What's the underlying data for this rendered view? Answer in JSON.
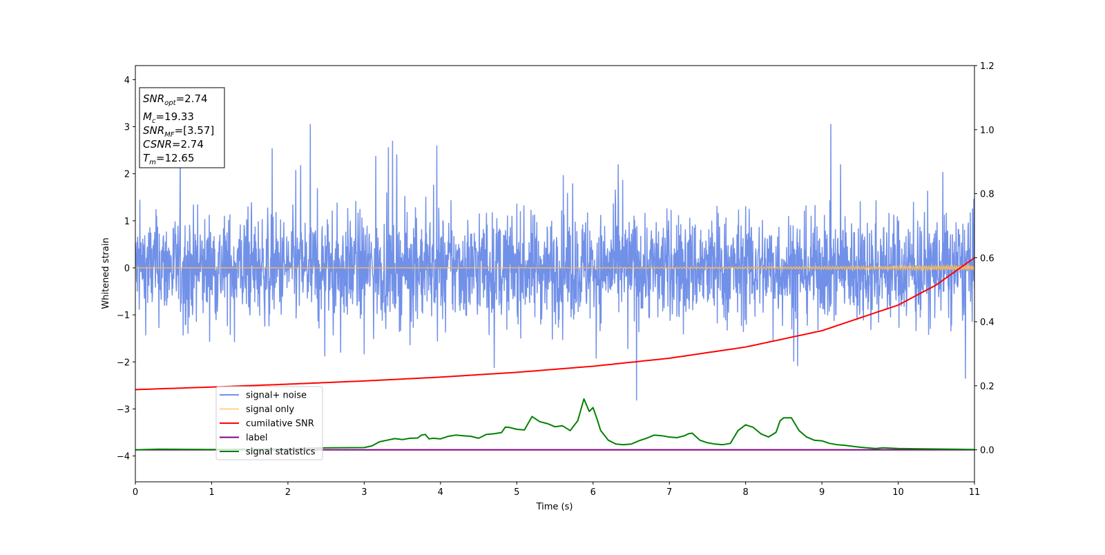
{
  "chart_data": {
    "type": "line",
    "xlabel": "Time (s)",
    "ylabel": "Whitened strain",
    "xlim": [
      0,
      11
    ],
    "ylim_left": [
      -4.55,
      4.3
    ],
    "ylim_right": [
      -0.1,
      1.2
    ],
    "x_ticks": [
      0,
      1,
      2,
      3,
      4,
      5,
      6,
      7,
      8,
      9,
      10,
      11
    ],
    "y_ticks_left": [
      -4,
      -3,
      -2,
      -1,
      0,
      1,
      2,
      3,
      4
    ],
    "y_ticks_right": [
      0.0,
      0.2,
      0.4,
      0.6,
      0.8,
      1.0,
      1.2
    ],
    "y_tick_labels_left": [
      "−4",
      "−3",
      "−2",
      "−1",
      "0",
      "1",
      "2",
      "3",
      "4"
    ],
    "y_tick_labels_right": [
      "0.0",
      "0.2",
      "0.4",
      "0.6",
      "0.8",
      "1.0",
      "1.2"
    ],
    "info_box": {
      "snr_opt": {
        "base": "SNR",
        "sub": "opt",
        "value": "=2.74"
      },
      "mc": {
        "base": "M",
        "sub": "c",
        "value": "=19.33"
      },
      "snr_mf": {
        "base": "SNR",
        "sub": "MF",
        "value": "=[3.57]"
      },
      "csnr": {
        "base": "CSNR",
        "value": "=2.74"
      },
      "tm": {
        "base": "T",
        "sub": "m",
        "value": "=12.65"
      }
    },
    "legend": {
      "placement": "lower-left",
      "entries": [
        {
          "label": "signal+ noise",
          "color": "#7190e8"
        },
        {
          "label": "signal only",
          "color": "#ffd28a"
        },
        {
          "label": "cumilative SNR",
          "color": "#ff0000"
        },
        {
          "label": "label",
          "color": "#800080"
        },
        {
          "label": "signal statistics",
          "color": "#008000"
        }
      ]
    },
    "series": [
      {
        "name": "signal+ noise",
        "axis": "left",
        "color": "#7190e8",
        "description": "noise band approx ±1.7 with spikes up to ~3.1"
      },
      {
        "name": "signal only",
        "axis": "left",
        "color": "#f0b860",
        "amplitude_end": 0.05
      },
      {
        "name": "cumilative SNR",
        "axis": "right",
        "color": "#ff0000",
        "x": [
          0,
          1,
          2,
          3,
          4,
          5,
          6,
          7,
          8,
          9,
          10,
          10.5,
          11
        ],
        "y": [
          0.188,
          0.196,
          0.205,
          0.215,
          0.227,
          0.242,
          0.261,
          0.286,
          0.321,
          0.372,
          0.452,
          0.515,
          0.6
        ]
      },
      {
        "name": "label",
        "axis": "right",
        "color": "#800080",
        "x": [
          0,
          11
        ],
        "y": [
          0,
          0
        ]
      },
      {
        "name": "signal statistics",
        "axis": "right",
        "color": "#008000",
        "x": [
          0,
          0.3,
          1,
          2,
          2.5,
          3,
          3.1,
          3.2,
          3.3,
          3.4,
          3.5,
          3.6,
          3.7,
          3.75,
          3.8,
          3.85,
          3.9,
          4.0,
          4.1,
          4.2,
          4.3,
          4.4,
          4.5,
          4.6,
          4.7,
          4.8,
          4.85,
          4.9,
          5.0,
          5.1,
          5.2,
          5.3,
          5.4,
          5.5,
          5.6,
          5.7,
          5.8,
          5.88,
          5.95,
          6.0,
          6.05,
          6.1,
          6.2,
          6.3,
          6.4,
          6.5,
          6.6,
          6.7,
          6.8,
          6.9,
          7.0,
          7.1,
          7.2,
          7.25,
          7.3,
          7.4,
          7.5,
          7.6,
          7.7,
          7.8,
          7.9,
          8.0,
          8.1,
          8.2,
          8.3,
          8.4,
          8.45,
          8.5,
          8.55,
          8.6,
          8.7,
          8.8,
          8.9,
          9.0,
          9.1,
          9.2,
          9.3,
          9.5,
          9.7,
          9.8,
          10.0,
          10.3,
          10.7,
          11
        ],
        "y": [
          0.0,
          0.002,
          0.001,
          0.003,
          0.006,
          0.007,
          0.012,
          0.025,
          0.03,
          0.035,
          0.032,
          0.036,
          0.037,
          0.046,
          0.048,
          0.034,
          0.036,
          0.034,
          0.042,
          0.046,
          0.044,
          0.042,
          0.036,
          0.048,
          0.05,
          0.054,
          0.071,
          0.07,
          0.064,
          0.062,
          0.104,
          0.088,
          0.082,
          0.072,
          0.075,
          0.06,
          0.091,
          0.159,
          0.12,
          0.132,
          0.098,
          0.06,
          0.03,
          0.018,
          0.016,
          0.018,
          0.028,
          0.036,
          0.046,
          0.044,
          0.04,
          0.038,
          0.044,
          0.05,
          0.052,
          0.03,
          0.022,
          0.018,
          0.016,
          0.02,
          0.06,
          0.078,
          0.07,
          0.05,
          0.04,
          0.055,
          0.09,
          0.1,
          0.1,
          0.1,
          0.06,
          0.04,
          0.03,
          0.028,
          0.02,
          0.016,
          0.014,
          0.008,
          0.004,
          0.006,
          0.004,
          0.003,
          0.002,
          0.001
        ]
      }
    ]
  }
}
